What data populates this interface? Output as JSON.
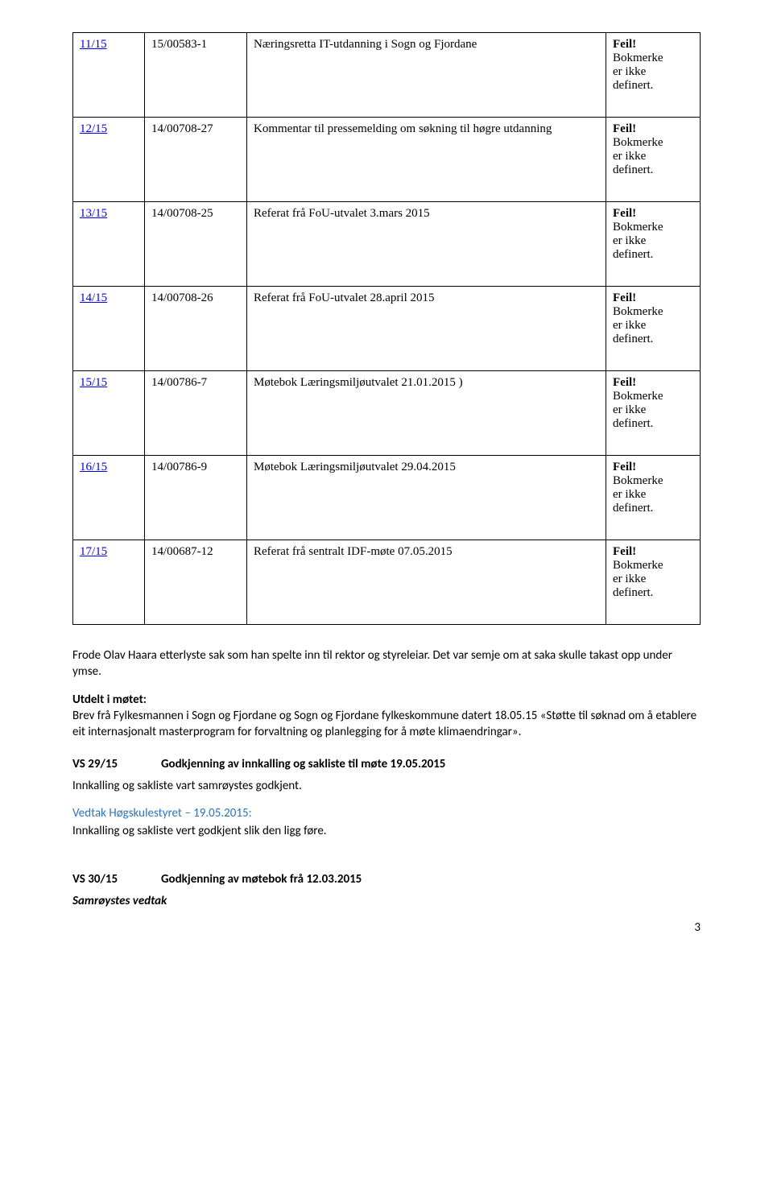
{
  "colors": {
    "link": "#0000ee",
    "blue_heading": "#2e74b5",
    "border": "#000000",
    "background": "#ffffff",
    "text": "#000000"
  },
  "table": {
    "rows": [
      {
        "id": "11/15",
        "ref": "15/00583-1",
        "title": "Næringsretta IT-utdanning i Sogn og Fjordane",
        "status": "Feil! Bokmerke er ikke definert."
      },
      {
        "id": "12/15",
        "ref": "14/00708-27",
        "title": "Kommentar til pressemelding om søkning til  høgre utdanning",
        "status": "Feil! Bokmerke er ikke definert."
      },
      {
        "id": "13/15",
        "ref": "14/00708-25",
        "title": "Referat frå FoU-utvalet 3.mars 2015",
        "status": "Feil! Bokmerke er ikke definert."
      },
      {
        "id": "14/15",
        "ref": "14/00708-26",
        "title": "Referat frå FoU-utvalet 28.april 2015",
        "status": "Feil! Bokmerke er ikke definert."
      },
      {
        "id": "15/15",
        "ref": "14/00786-7",
        "title": "Møtebok Læringsmiljøutvalet  21.01.2015 )",
        "status": "Feil! Bokmerke er ikke definert."
      },
      {
        "id": "16/15",
        "ref": "14/00786-9",
        "title": "Møtebok Læringsmiljøutvalet 29.04.2015",
        "status": "Feil! Bokmerke er ikke definert."
      },
      {
        "id": "17/15",
        "ref": "14/00687-12",
        "title": "Referat frå sentralt IDF-møte 07.05.2015",
        "status": "Feil! Bokmerke er ikke definert."
      }
    ],
    "status_bold_word": "Feil!",
    "status_rest": "Bokmerke er ikke definert."
  },
  "paragraphs": {
    "p1": "Frode Olav Haara etterlyste sak som han spelte inn til rektor og styreleiar. Det var semje om at saka skulle takast opp under ymse.",
    "p2_lead": "Utdelt i møtet:",
    "p2_body": "Brev frå Fylkesmannen i Sogn og Fjordane og Sogn og Fjordane fylkeskommune datert 18.05.15  «Støtte til søknad om å etablere eit internasjonalt masterprogram for forvaltning og planlegging for å møte klimaendringar».",
    "vs29_label": "VS  29/15",
    "vs29_text": "Godkjenning av innkalling og sakliste til møte 19.05.2015",
    "p3": "Innkalling og sakliste vart samrøystes godkjent.",
    "vedtak_head": "Vedtak  Høgskulestyret – 19.05.2015:",
    "vedtak_body": "Innkalling og sakliste vert godkjent slik den ligg føre.",
    "vs30_label": "VS 30/15",
    "vs30_text": "Godkjenning av møtebok frå 12.03.2015",
    "p4": "Samrøystes vedtak"
  },
  "page_number": "3"
}
